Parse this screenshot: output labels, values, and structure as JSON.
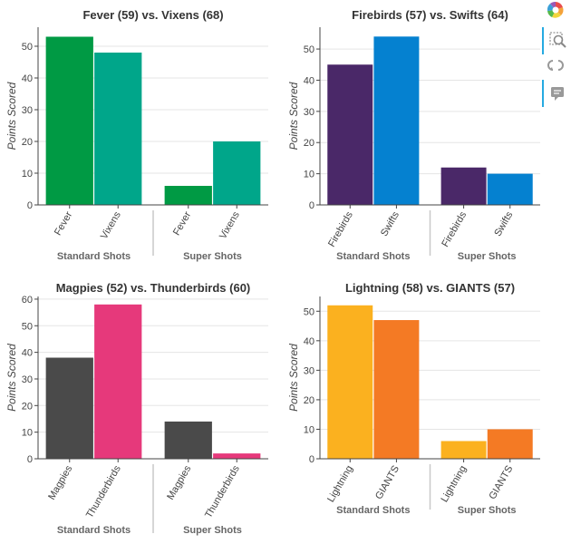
{
  "toolbar": {
    "items": [
      {
        "name": "bokeh-logo-icon",
        "active": false
      },
      {
        "name": "box-zoom-icon",
        "active": true
      },
      {
        "name": "reset-icon",
        "active": false
      },
      {
        "name": "hover-tooltip-icon",
        "active": true
      }
    ]
  },
  "colors": {
    "Fever": "#009a44",
    "Vixens": "#00a68a",
    "Firebirds": "#4a2868",
    "Swifts": "#0581d0",
    "Magpies": "#4a4a4a",
    "Thunderbirds": "#e6397b",
    "Lightning": "#fbb11f",
    "GIANTS": "#f47a24",
    "axis": "#444444",
    "grid": "#e5e5e5",
    "separator": "#c8c8c8"
  },
  "chart_data": [
    {
      "type": "bar",
      "title": "Fever (59) vs. Vixens (68)",
      "ylabel": "Points Scored",
      "groups": [
        "Standard Shots",
        "Super Shots"
      ],
      "teams": [
        "Fever",
        "Vixens"
      ],
      "series": [
        {
          "name": "Fever",
          "values": [
            53,
            6
          ]
        },
        {
          "name": "Vixens",
          "values": [
            48,
            20
          ]
        }
      ],
      "ylim": [
        0,
        56
      ],
      "yticks": [
        0,
        10,
        20,
        30,
        40,
        50
      ],
      "grid": true
    },
    {
      "type": "bar",
      "title": "Firebirds (57) vs. Swifts (64)",
      "ylabel": "Points Scored",
      "groups": [
        "Standard Shots",
        "Super Shots"
      ],
      "teams": [
        "Firebirds",
        "Swifts"
      ],
      "series": [
        {
          "name": "Firebirds",
          "values": [
            45,
            12
          ]
        },
        {
          "name": "Swifts",
          "values": [
            54,
            10
          ]
        }
      ],
      "ylim": [
        0,
        57
      ],
      "yticks": [
        0,
        10,
        20,
        30,
        40,
        50
      ],
      "grid": true
    },
    {
      "type": "bar",
      "title": "Magpies (52) vs. Thunderbirds (60)",
      "ylabel": "Points Scored",
      "groups": [
        "Standard Shots",
        "Super Shots"
      ],
      "teams": [
        "Magpies",
        "Thunderbirds"
      ],
      "series": [
        {
          "name": "Magpies",
          "values": [
            38,
            14
          ]
        },
        {
          "name": "Thunderbirds",
          "values": [
            58,
            2
          ]
        }
      ],
      "ylim": [
        0,
        61
      ],
      "yticks": [
        0,
        10,
        20,
        30,
        40,
        50,
        60
      ],
      "grid": true
    },
    {
      "type": "bar",
      "title": "Lightning (58) vs. GIANTS (57)",
      "ylabel": "Points Scored",
      "groups": [
        "Standard Shots",
        "Super Shots"
      ],
      "teams": [
        "Lightning",
        "GIANTS"
      ],
      "series": [
        {
          "name": "Lightning",
          "values": [
            52,
            6
          ]
        },
        {
          "name": "GIANTS",
          "values": [
            47,
            10
          ]
        }
      ],
      "ylim": [
        0,
        55
      ],
      "yticks": [
        0,
        10,
        20,
        30,
        40,
        50
      ],
      "grid": true
    }
  ]
}
